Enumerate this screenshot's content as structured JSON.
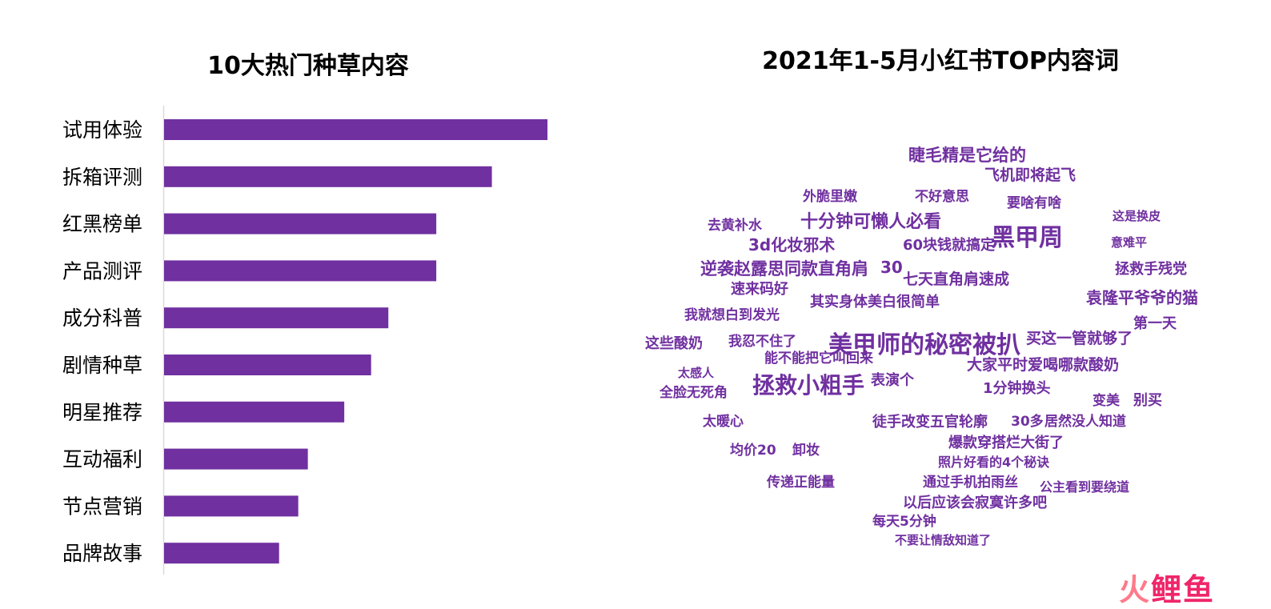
{
  "chart_data": [
    {
      "type": "bar",
      "orientation": "horizontal",
      "title": "10大热门种草内容",
      "categories": [
        "试用体验",
        "拆箱评测",
        "红黑榜单",
        "产品测评",
        "成分科普",
        "剧情种草",
        "明星推荐",
        "互动福利",
        "节点营销",
        "品牌故事"
      ],
      "values": [
        100,
        85.5,
        71,
        71,
        58.5,
        54,
        47,
        37.5,
        35,
        30
      ],
      "bar_color": "#7030a0",
      "grid": false,
      "value_axis_visible": false
    },
    {
      "type": "wordcloud",
      "title": "2021年1-5月小红书TOP内容词",
      "color": "#7030a0",
      "words": [
        "黑甲周",
        "美甲师的秘密被扒",
        "拯救小粗手",
        "睫毛精是它给的",
        "飞机即将起飞",
        "十分钟可懒人必看",
        "逆袭赵露思同款直角肩",
        "30",
        "3d化妆邪术",
        "60块钱就搞定",
        "七天直角肩速成",
        "袁隆平爷爷的猫",
        "拯救手残党",
        "第一天",
        "买这一管就够了",
        "大家平时爱喝哪款酸奶",
        "速来码好",
        "其实身体美白很简单",
        "我就想白到发光",
        "这些酸奶",
        "我忍不住了",
        "能不能把它叫回来",
        "表演个",
        "1分钟换头",
        "别买",
        "变美",
        "全脸无死角",
        "太暖心",
        "徒手改变五官轮廓",
        "30多",
        "居然没人知道",
        "爆款穿搭烂大街了",
        "照片好看的4个秘诀",
        "通过手机拍雨丝",
        "以后应该会寂寞许多吧",
        "每天5分钟",
        "不要让情敌知道了",
        "传递正能量",
        "均价20",
        "卸妆",
        "公主看到要绕道",
        "外脆里嫩",
        "不好意思",
        "要啥有啥",
        "去黄补水",
        "太感人",
        "意难平",
        "这是换皮"
      ]
    }
  ],
  "watermark": {
    "part_a": "火",
    "part_b": "鲤鱼"
  }
}
